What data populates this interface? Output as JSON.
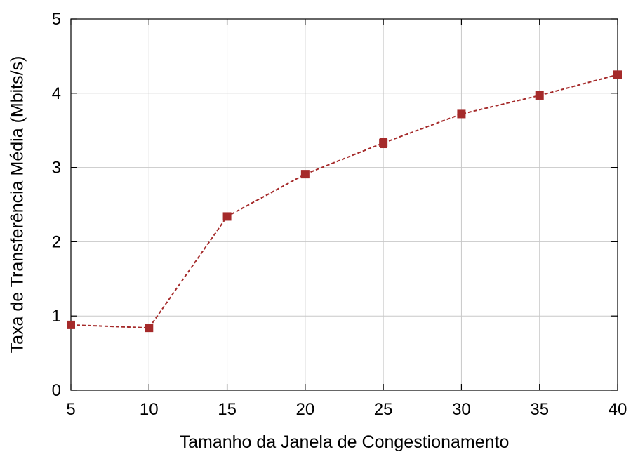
{
  "chart_data": {
    "type": "line",
    "title": "",
    "xlabel": "Tamanho da Janela de Congestionamento",
    "ylabel": "Taxa de Transferência Média (Mbits/s)",
    "xlim": [
      5,
      40
    ],
    "ylim": [
      0,
      5
    ],
    "xticks": [
      5,
      10,
      15,
      20,
      25,
      30,
      35,
      40
    ],
    "yticks": [
      0,
      1,
      2,
      3,
      4,
      5
    ],
    "grid": true,
    "legend": "none",
    "series": [
      {
        "color": "#a52a2a",
        "marker": "square",
        "line_style": "dashed",
        "x": [
          5,
          10,
          15,
          20,
          25,
          30,
          35,
          40
        ],
        "y": [
          0.88,
          0.84,
          2.34,
          2.91,
          3.33,
          3.72,
          3.97,
          4.25
        ],
        "error": [
          0.0,
          0.0,
          0.0,
          0.0,
          0.06,
          0.0,
          0.0,
          0.0
        ]
      }
    ]
  }
}
